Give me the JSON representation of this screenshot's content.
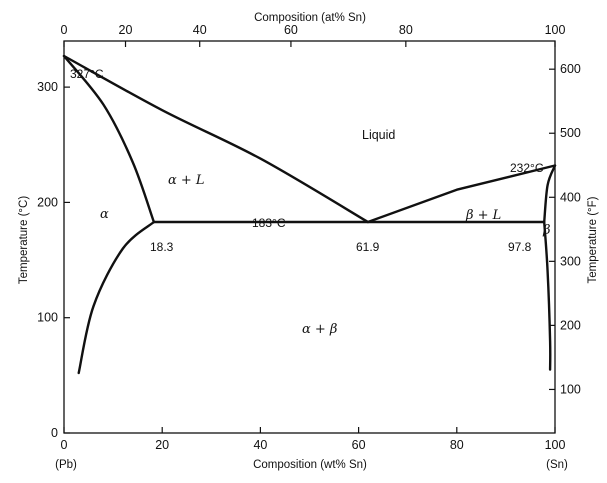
{
  "chart_data": {
    "type": "phase-diagram",
    "xlabel_bottom": "Composition (wt% Sn)",
    "xlabel_top": "Composition (at% Sn)",
    "ylabel_left": "Temperature (°C)",
    "ylabel_right": "Temperature (°F)",
    "x_ticks_bottom": [
      0,
      20,
      40,
      60,
      80,
      100
    ],
    "x_ticks_top": [
      0,
      20,
      40,
      60,
      80,
      100
    ],
    "y_ticks_left": [
      0,
      100,
      200,
      300
    ],
    "y_ticks_right": [
      100,
      200,
      300,
      400,
      500,
      600
    ],
    "xlim": [
      0,
      100
    ],
    "ylim": [
      0,
      340
    ],
    "end_labels": {
      "left": "(Pb)",
      "right": "(Sn)"
    },
    "annotations": {
      "pb_melting": "327°C",
      "sn_melting": "232°C",
      "eutectic_temp": "183°C",
      "alpha_limit": "18.3",
      "eutectic_comp": "61.9",
      "beta_limit": "97.8"
    },
    "regions": {
      "liquid": "Liquid",
      "alpha": "α",
      "alpha_liquid": "α + L",
      "beta_liquid": "β + L",
      "beta": "β",
      "alpha_beta": "α + β"
    },
    "curves": {
      "liquidus_left": [
        [
          0,
          327
        ],
        [
          20,
          280
        ],
        [
          40,
          238
        ],
        [
          61.9,
          183
        ]
      ],
      "liquidus_right": [
        [
          61.9,
          183
        ],
        [
          80,
          211
        ],
        [
          100,
          232
        ]
      ],
      "solidus_alpha": [
        [
          0,
          327
        ],
        [
          8,
          285
        ],
        [
          14,
          235
        ],
        [
          18.3,
          183
        ]
      ],
      "solvus_alpha": [
        [
          18.3,
          183
        ],
        [
          12,
          160
        ],
        [
          6,
          110
        ],
        [
          3,
          52
        ]
      ],
      "eutectic_line": [
        [
          18.3,
          183
        ],
        [
          97.8,
          183
        ]
      ],
      "solidus_beta": [
        [
          100,
          232
        ],
        [
          98.5,
          215
        ],
        [
          97.8,
          183
        ]
      ],
      "solvus_beta": [
        [
          97.8,
          183
        ],
        [
          98.5,
          140
        ],
        [
          99,
          80
        ],
        [
          99,
          55
        ]
      ]
    }
  }
}
